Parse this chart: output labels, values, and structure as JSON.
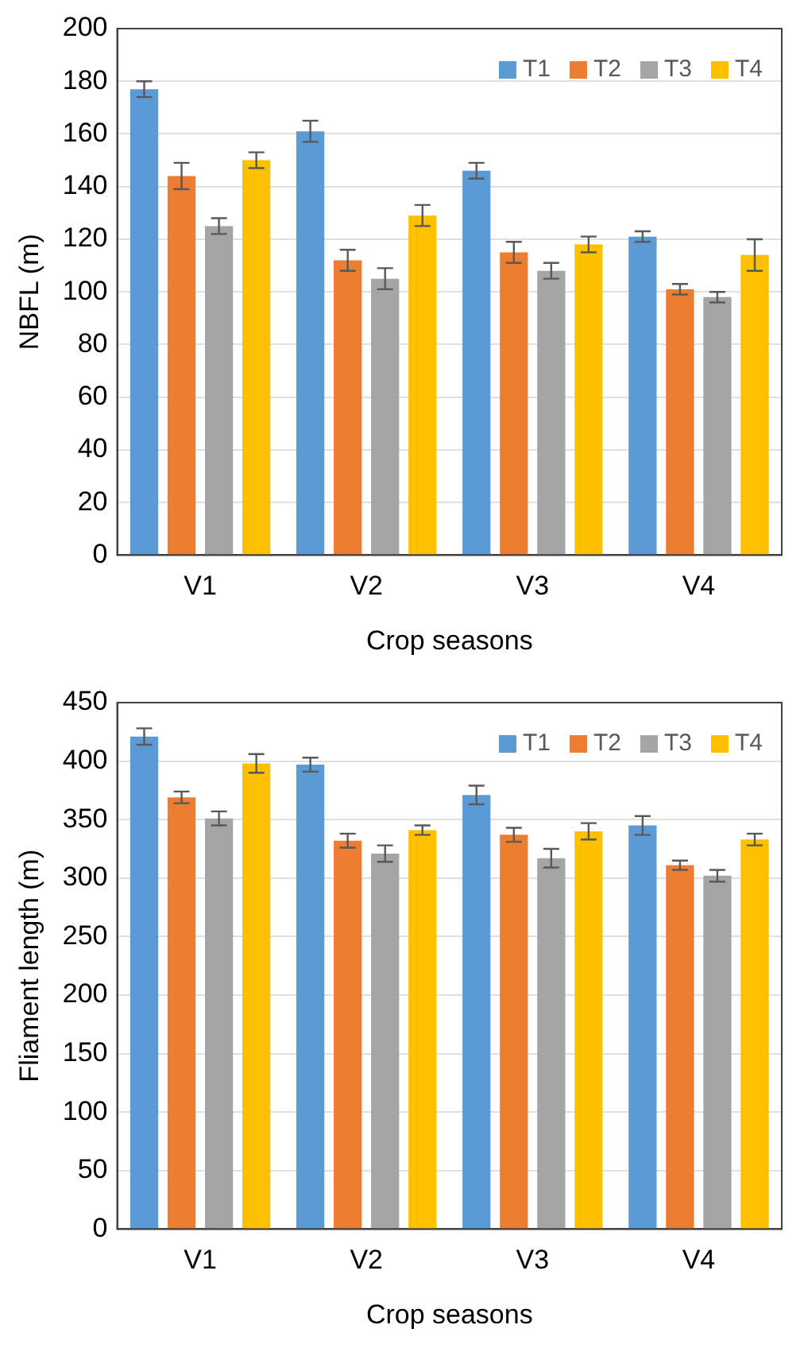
{
  "chart_data": [
    {
      "type": "bar",
      "xlabel": "Crop seasons",
      "ylabel": "NBFL (m)",
      "categories": [
        "V1",
        "V2",
        "V3",
        "V4"
      ],
      "series": [
        {
          "name": "T1",
          "color": "#5b9bd5",
          "values": [
            177,
            161,
            146,
            121
          ],
          "errors": [
            3,
            4,
            3,
            2
          ]
        },
        {
          "name": "T2",
          "color": "#ed7d31",
          "values": [
            144,
            112,
            115,
            101
          ],
          "errors": [
            5,
            4,
            4,
            2
          ]
        },
        {
          "name": "T3",
          "color": "#a5a5a5",
          "values": [
            125,
            105,
            108,
            98
          ],
          "errors": [
            3,
            4,
            3,
            2
          ]
        },
        {
          "name": "T4",
          "color": "#ffc000",
          "values": [
            150,
            129,
            118,
            114
          ],
          "errors": [
            3,
            4,
            3,
            6
          ]
        }
      ],
      "ylim": [
        0,
        200
      ],
      "yticks": [
        0,
        20,
        40,
        60,
        80,
        100,
        120,
        140,
        160,
        180,
        200
      ],
      "grid": "y",
      "legend": "top right"
    },
    {
      "type": "bar",
      "xlabel": "Crop seasons",
      "ylabel": "Fliament length (m)",
      "categories": [
        "V1",
        "V2",
        "V3",
        "V4"
      ],
      "series": [
        {
          "name": "T1",
          "color": "#5b9bd5",
          "values": [
            421,
            397,
            371,
            345
          ],
          "errors": [
            7,
            6,
            8,
            8
          ]
        },
        {
          "name": "T2",
          "color": "#ed7d31",
          "values": [
            369,
            332,
            337,
            311
          ],
          "errors": [
            5,
            6,
            6,
            4
          ]
        },
        {
          "name": "T3",
          "color": "#a5a5a5",
          "values": [
            351,
            321,
            317,
            302
          ],
          "errors": [
            6,
            7,
            8,
            5
          ]
        },
        {
          "name": "T4",
          "color": "#ffc000",
          "values": [
            398,
            341,
            340,
            333
          ],
          "errors": [
            8,
            4,
            7,
            5
          ]
        }
      ],
      "ylim": [
        0,
        450
      ],
      "yticks": [
        0,
        50,
        100,
        150,
        200,
        250,
        300,
        350,
        400,
        450
      ],
      "grid": "y",
      "legend": "top right"
    }
  ]
}
